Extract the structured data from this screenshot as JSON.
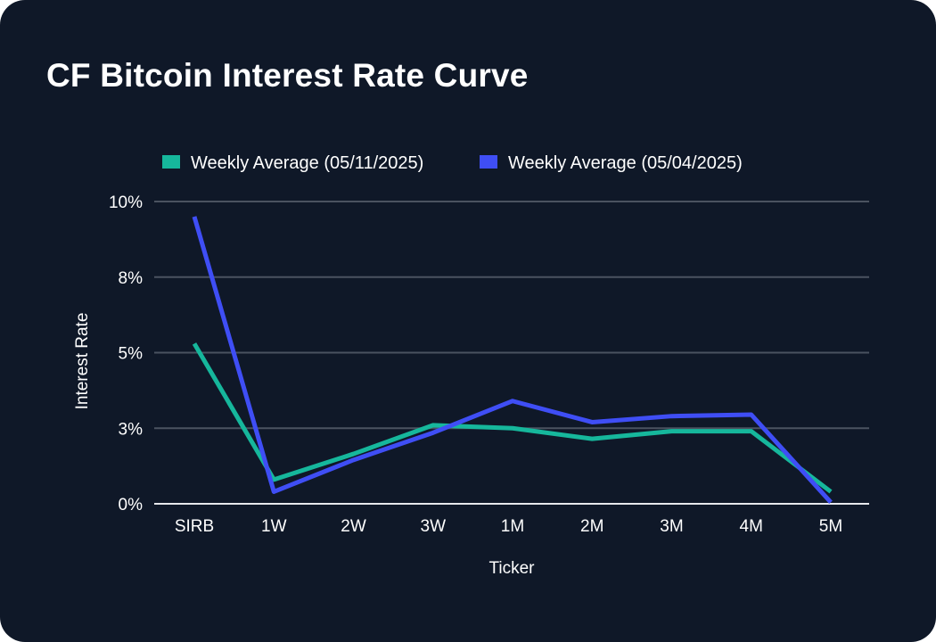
{
  "title": "CF Bitcoin Interest Rate Curve",
  "colors": {
    "background": "#0f1828",
    "series_1": "#16b79c",
    "series_2": "#3f4ef5",
    "grid": "#4a5260",
    "baseline": "#e6e8ec"
  },
  "chart_data": {
    "type": "line",
    "title": "CF Bitcoin Interest Rate Curve",
    "xlabel": "Ticker",
    "ylabel": "Interest Rate",
    "categories": [
      "SIRB",
      "1W",
      "2W",
      "3W",
      "1M",
      "2M",
      "3M",
      "4M",
      "5M"
    ],
    "ylim": [
      0,
      10
    ],
    "yticks": [
      0,
      2.5,
      5,
      7.5,
      10
    ],
    "ytick_labels": [
      "0%",
      "3%",
      "5%",
      "8%",
      "10%"
    ],
    "grid": true,
    "legend_position": "top",
    "series": [
      {
        "name": "Weekly Average (05/11/2025)",
        "color": "#16b79c",
        "values": [
          5.3,
          0.8,
          1.65,
          2.6,
          2.5,
          2.15,
          2.4,
          2.4,
          0.4
        ]
      },
      {
        "name": "Weekly Average (05/04/2025)",
        "color": "#3f4ef5",
        "values": [
          9.5,
          0.4,
          1.45,
          2.35,
          3.4,
          2.7,
          2.9,
          2.95,
          0.05
        ]
      }
    ]
  }
}
